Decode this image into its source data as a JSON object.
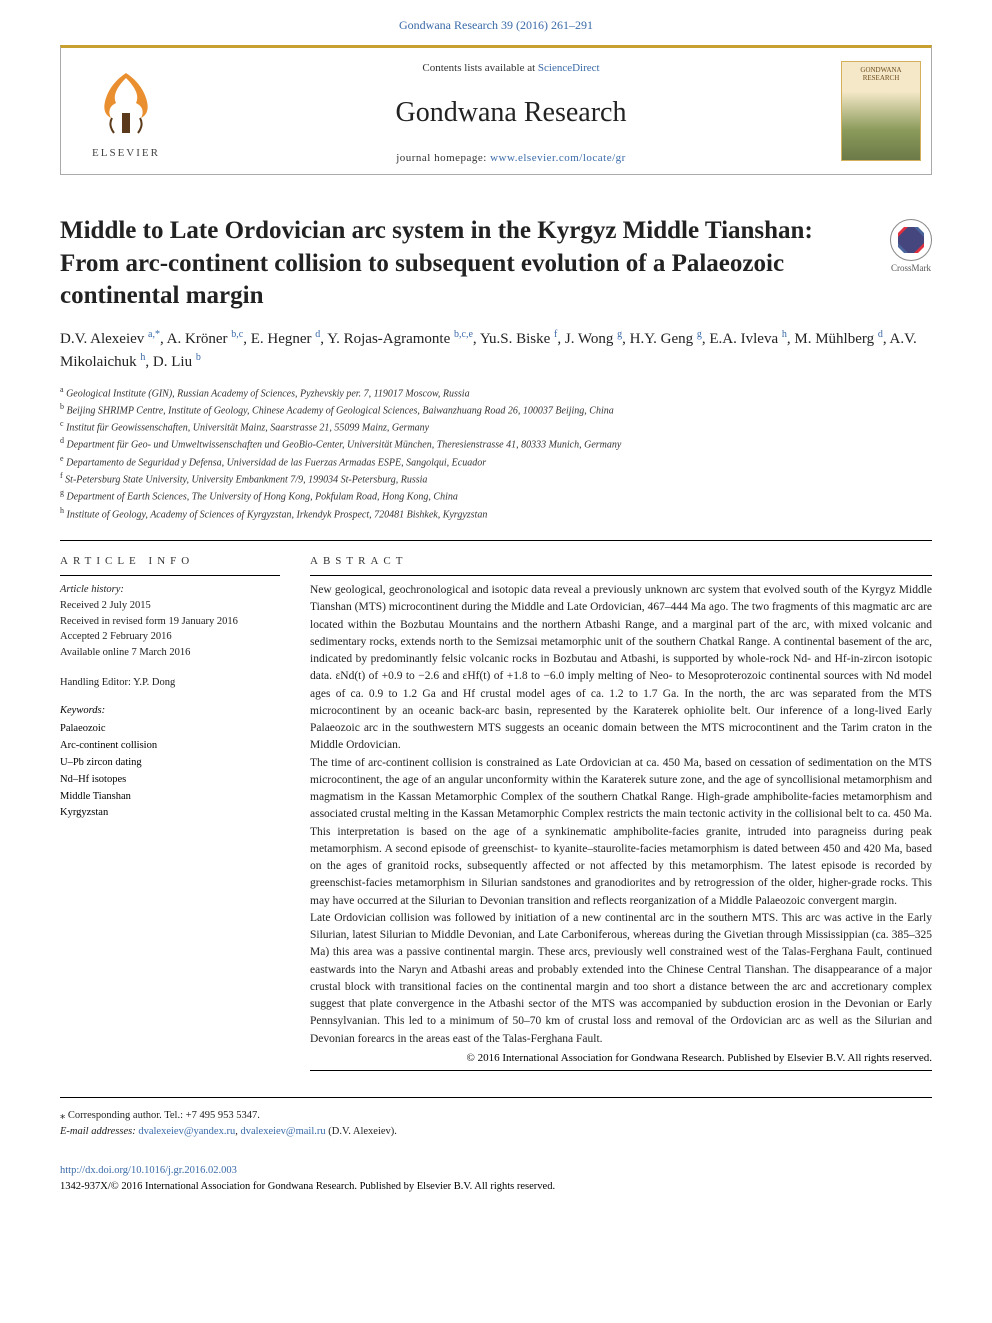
{
  "top_link": "Gondwana Research 39 (2016) 261–291",
  "header": {
    "contents_prefix": "Contents lists available at ",
    "contents_link": "ScienceDirect",
    "journal": "Gondwana Research",
    "homepage_prefix": "journal homepage: ",
    "homepage_url": "www.elsevier.com/locate/gr",
    "elsevier_word": "ELSEVIER",
    "cover_title": "GONDWANA RESEARCH"
  },
  "crossmark": "CrossMark",
  "title": "Middle to Late Ordovician arc system in the Kyrgyz Middle Tianshan: From arc-continent collision to subsequent evolution of a Palaeozoic continental margin",
  "authors_html": "D.V. Alexeiev <sup><a>a,</a>*</sup>, A. Kröner <sup><a>b,c</a></sup>, E. Hegner <sup><a>d</a></sup>, Y. Rojas-Agramonte <sup><a>b,c,e</a></sup>, Yu.S. Biske <sup><a>f</a></sup>, J. Wong <sup><a>g</a></sup>, H.Y. Geng <sup><a>g</a></sup>, E.A. Ivleva <sup><a>h</a></sup>, M. Mühlberg <sup><a>d</a></sup>, A.V. Mikolaichuk <sup><a>h</a></sup>, D. Liu <sup><a>b</a></sup>",
  "affiliations": [
    {
      "sup": "a",
      "text": " Geological Institute (GIN), Russian Academy of Sciences, Pyzhevskiy per. 7, 119017 Moscow, Russia"
    },
    {
      "sup": "b",
      "text": " Beijing SHRIMP Centre, Institute of Geology, Chinese Academy of Geological Sciences, Baiwanzhuang Road 26, 100037 Beijing, China"
    },
    {
      "sup": "c",
      "text": " Institut für Geowissenschaften, Universität Mainz, Saarstrasse 21, 55099 Mainz, Germany"
    },
    {
      "sup": "d",
      "text": " Department für Geo- und Umweltwissenschaften und GeoBio-Center, Universität München, Theresienstrasse 41, 80333 Munich, Germany"
    },
    {
      "sup": "e",
      "text": " Departamento de Seguridad y Defensa, Universidad de las Fuerzas Armadas ESPE, Sangolqui, Ecuador"
    },
    {
      "sup": "f",
      "text": " St-Petersburg State University, University Embankment 7/9, 199034 St-Petersburg, Russia"
    },
    {
      "sup": "g",
      "text": " Department of Earth Sciences, The University of Hong Kong, Pokfulam Road, Hong Kong, China"
    },
    {
      "sup": "h",
      "text": " Institute of Geology, Academy of Sciences of Kyrgyzstan, Irkendyk Prospect, 720481 Bishkek, Kyrgyzstan"
    }
  ],
  "article_info": {
    "heading": "article info",
    "history_label": "Article history:",
    "received": "Received 2 July 2015",
    "revised": "Received in revised form 19 January 2016",
    "accepted": "Accepted 2 February 2016",
    "online": "Available online 7 March 2016",
    "editor": "Handling Editor: Y.P. Dong",
    "keywords_label": "Keywords:",
    "keywords": [
      "Palaeozoic",
      "Arc-continent collision",
      "U–Pb zircon dating",
      "Nd–Hf isotopes",
      "Middle Tianshan",
      "Kyrgyzstan"
    ]
  },
  "abstract": {
    "heading": "abstract",
    "paragraphs": [
      "New geological, geochronological and isotopic data reveal a previously unknown arc system that evolved south of the Kyrgyz Middle Tianshan (MTS) microcontinent during the Middle and Late Ordovician, 467–444 Ma ago. The two fragments of this magmatic arc are located within the Bozbutau Mountains and the northern Atbashi Range, and a marginal part of the arc, with mixed volcanic and sedimentary rocks, extends north to the Semizsai metamorphic unit of the southern Chatkal Range. A continental basement of the arc, indicated by predominantly felsic volcanic rocks in Bozbutau and Atbashi, is supported by whole-rock Nd- and Hf-in-zircon isotopic data. εNd(t) of +0.9 to −2.6 and εHf(t) of +1.8 to −6.0 imply melting of Neo- to Mesoproterozoic continental sources with Nd model ages of ca. 0.9 to 1.2 Ga and Hf crustal model ages of ca. 1.2 to 1.7 Ga. In the north, the arc was separated from the MTS microcontinent by an oceanic back-arc basin, represented by the Karaterek ophiolite belt. Our inference of a long-lived Early Palaeozoic arc in the southwestern MTS suggests an oceanic domain between the MTS microcontinent and the Tarim craton in the Middle Ordovician.",
      "The time of arc-continent collision is constrained as Late Ordovician at ca. 450 Ma, based on cessation of sedimentation on the MTS microcontinent, the age of an angular unconformity within the Karaterek suture zone, and the age of syncollisional metamorphism and magmatism in the Kassan Metamorphic Complex of the southern Chatkal Range. High-grade amphibolite-facies metamorphism and associated crustal melting in the Kassan Metamorphic Complex restricts the main tectonic activity in the collisional belt to ca. 450 Ma. This interpretation is based on the age of a synkinematic amphibolite-facies granite, intruded into paragneiss during peak metamorphism. A second episode of greenschist- to kyanite–staurolite-facies metamorphism is dated between 450 and 420 Ma, based on the ages of granitoid rocks, subsequently affected or not affected by this metamorphism. The latest episode is recorded by greenschist-facies metamorphism in Silurian sandstones and granodiorites and by retrogression of the older, higher-grade rocks. This may have occurred at the Silurian to Devonian transition and reflects reorganization of a Middle Palaeozoic convergent margin.",
      "Late Ordovician collision was followed by initiation of a new continental arc in the southern MTS. This arc was active in the Early Silurian, latest Silurian to Middle Devonian, and Late Carboniferous, whereas during the Givetian through Mississippian (ca. 385–325 Ma) this area was a passive continental margin. These arcs, previously well constrained west of the Talas-Ferghana Fault, continued eastwards into the Naryn and Atbashi areas and probably extended into the Chinese Central Tianshan. The disappearance of a major crustal block with transitional facies on the continental margin and too short a distance between the arc and accretionary complex suggest that plate convergence in the Atbashi sector of the MTS was accompanied by subduction erosion in the Devonian or Early Pennsylvanian. This led to a minimum of 50–70 km of crustal loss and removal of the Ordovician arc as well as the Silurian and Devonian forearcs in the areas east of the Talas-Ferghana Fault."
    ],
    "copyright": "© 2016 International Association for Gondwana Research. Published by Elsevier B.V. All rights reserved."
  },
  "footer": {
    "corr_label": "⁎  Corresponding author. Tel.: +7 495 953 5347.",
    "email_label": "E-mail addresses: ",
    "email1": "dvalexeiev@yandex.ru",
    "email2": "dvalexeiev@mail.ru",
    "email_paren": " (D.V. Alexeiev)."
  },
  "doi": {
    "url": "http://dx.doi.org/10.1016/j.gr.2016.02.003",
    "issn_line": "1342-937X/© 2016 International Association for Gondwana Research. Published by Elsevier B.V. All rights reserved."
  },
  "colors": {
    "link": "#3a6aa8",
    "gold_rule": "#c8a030",
    "text": "#222222"
  }
}
